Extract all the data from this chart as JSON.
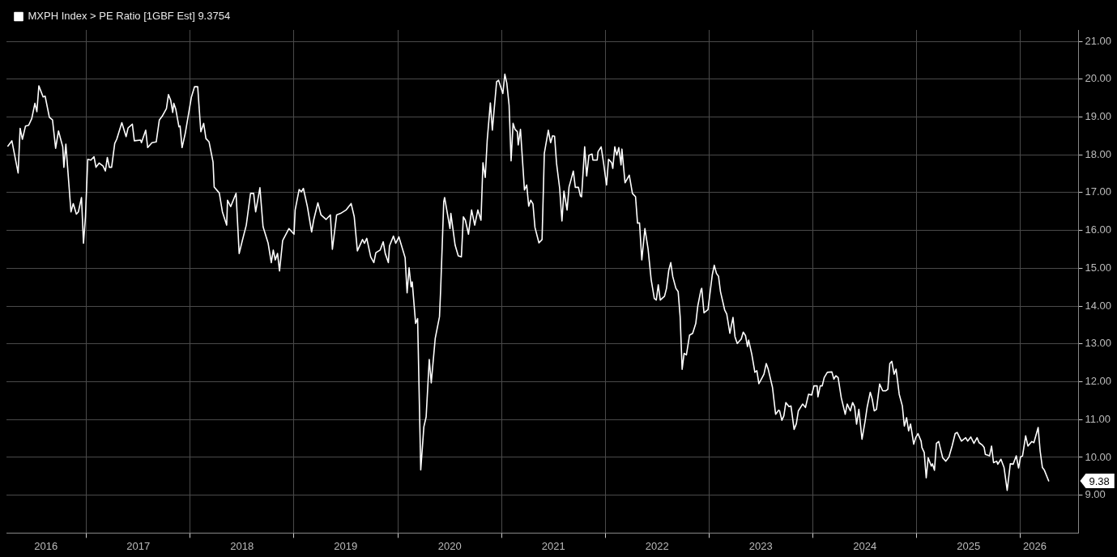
{
  "chart_data": {
    "type": "line",
    "x": [
      "2016-03-30",
      "2016-04-13",
      "2016-05-05",
      "2016-05-12",
      "2016-05-20",
      "2016-05-31",
      "2016-06-11",
      "2016-06-22",
      "2016-07-03",
      "2016-07-10",
      "2016-07-17",
      "2016-08-01",
      "2016-08-08",
      "2016-08-23",
      "2016-09-03",
      "2016-09-14",
      "2016-09-24",
      "2016-10-09",
      "2016-10-13",
      "2016-10-20",
      "2016-11-07",
      "2016-11-15",
      "2016-11-26",
      "2016-12-03",
      "2016-12-14",
      "2016-12-21",
      "2016-12-28",
      "2017-01-05",
      "2017-01-16",
      "2017-01-27",
      "2017-02-03",
      "2017-02-14",
      "2017-02-28",
      "2017-03-08",
      "2017-03-15",
      "2017-03-22",
      "2017-03-30",
      "2017-04-10",
      "2017-04-17",
      "2017-05-05",
      "2017-05-20",
      "2017-05-27",
      "2017-06-11",
      "2017-06-18",
      "2017-07-10",
      "2017-07-13",
      "2017-07-28",
      "2017-08-04",
      "2017-08-19",
      "2017-09-03",
      "2017-09-14",
      "2017-09-24",
      "2017-10-09",
      "2017-10-16",
      "2017-10-24",
      "2017-10-31",
      "2017-11-04",
      "2017-11-11",
      "2017-11-22",
      "2017-11-26",
      "2017-12-03",
      "2017-12-14",
      "2018-01-05",
      "2018-01-16",
      "2018-01-27",
      "2018-02-07",
      "2018-02-17",
      "2018-02-25",
      "2018-03-08",
      "2018-03-22",
      "2018-03-26",
      "2018-04-13",
      "2018-04-24",
      "2018-05-09",
      "2018-05-12",
      "2018-05-23",
      "2018-06-11",
      "2018-06-22",
      "2018-07-03",
      "2018-07-17",
      "2018-08-01",
      "2018-08-12",
      "2018-08-19",
      "2018-09-03",
      "2018-09-14",
      "2018-10-02",
      "2018-10-13",
      "2018-10-20",
      "2018-10-27",
      "2018-11-04",
      "2018-11-11",
      "2018-11-22",
      "2018-12-14",
      "2019-01-01",
      "2019-01-05",
      "2019-01-19",
      "2019-01-27",
      "2019-02-03",
      "2019-02-17",
      "2019-03-04",
      "2019-03-11",
      "2019-03-26",
      "2019-04-06",
      "2019-04-24",
      "2019-05-09",
      "2019-05-16",
      "2019-05-31",
      "2019-06-14",
      "2019-07-03",
      "2019-07-21",
      "2019-08-01",
      "2019-08-12",
      "2019-08-30",
      "2019-09-06",
      "2019-09-14",
      "2019-09-28",
      "2019-10-09",
      "2019-10-16",
      "2019-10-31",
      "2019-11-11",
      "2019-11-18",
      "2019-11-29",
      "2019-12-03",
      "2019-12-17",
      "2019-12-25",
      "2020-01-05",
      "2020-01-27",
      "2020-02-03",
      "2020-02-10",
      "2020-02-17",
      "2020-02-21",
      "2020-03-04",
      "2020-03-11",
      "2020-03-22",
      "2020-04-02",
      "2020-04-10",
      "2020-04-21",
      "2020-04-28",
      "2020-05-12",
      "2020-05-27",
      "2020-05-31",
      "2020-06-11",
      "2020-06-14",
      "2020-07-03",
      "2020-07-06",
      "2020-07-21",
      "2020-08-01",
      "2020-08-12",
      "2020-08-19",
      "2020-08-26",
      "2020-09-06",
      "2020-09-17",
      "2020-09-28",
      "2020-10-09",
      "2020-10-20",
      "2020-10-27",
      "2020-11-04",
      "2020-11-11",
      "2020-11-22",
      "2020-11-29",
      "2020-12-14",
      "2020-12-21",
      "2021-01-05",
      "2021-01-12",
      "2021-01-19",
      "2021-01-27",
      "2021-02-03",
      "2021-02-10",
      "2021-02-17",
      "2021-02-25",
      "2021-02-28",
      "2021-03-08",
      "2021-03-22",
      "2021-03-30",
      "2021-04-06",
      "2021-04-13",
      "2021-04-21",
      "2021-04-28",
      "2021-05-12",
      "2021-05-23",
      "2021-05-31",
      "2021-06-14",
      "2021-06-22",
      "2021-06-29",
      "2021-07-06",
      "2021-07-13",
      "2021-07-24",
      "2021-08-01",
      "2021-08-08",
      "2021-08-19",
      "2021-08-26",
      "2021-09-03",
      "2021-09-10",
      "2021-09-17",
      "2021-09-28",
      "2021-10-05",
      "2021-10-09",
      "2021-10-20",
      "2021-10-27",
      "2021-11-04",
      "2021-11-15",
      "2021-11-18",
      "2021-12-03",
      "2021-12-06",
      "2021-12-17",
      "2021-12-25",
      "2022-01-05",
      "2022-01-12",
      "2022-01-23",
      "2022-01-27",
      "2022-02-03",
      "2022-02-10",
      "2022-02-17",
      "2022-02-25",
      "2022-02-28",
      "2022-03-11",
      "2022-03-26",
      "2022-04-06",
      "2022-04-17",
      "2022-04-24",
      "2022-05-01",
      "2022-05-09",
      "2022-05-20",
      "2022-05-31",
      "2022-06-11",
      "2022-06-22",
      "2022-06-29",
      "2022-07-06",
      "2022-07-13",
      "2022-07-28",
      "2022-08-04",
      "2022-08-12",
      "2022-08-19",
      "2022-08-26",
      "2022-09-06",
      "2022-09-14",
      "2022-09-21",
      "2022-09-28",
      "2022-10-05",
      "2022-10-13",
      "2022-10-24",
      "2022-11-04",
      "2022-11-15",
      "2022-11-22",
      "2022-12-03",
      "2022-12-06",
      "2022-12-14",
      "2022-12-28",
      "2023-01-12",
      "2023-01-19",
      "2023-01-27",
      "2023-02-03",
      "2023-02-10",
      "2023-02-25",
      "2023-03-04",
      "2023-03-15",
      "2023-03-26",
      "2023-04-02",
      "2023-04-10",
      "2023-04-24",
      "2023-05-01",
      "2023-05-09",
      "2023-05-16",
      "2023-05-20",
      "2023-05-31",
      "2023-06-11",
      "2023-06-18",
      "2023-06-25",
      "2023-07-06",
      "2023-07-13",
      "2023-07-21",
      "2023-07-28",
      "2023-08-12",
      "2023-08-23",
      "2023-09-03",
      "2023-09-06",
      "2023-09-14",
      "2023-09-21",
      "2023-09-28",
      "2023-10-09",
      "2023-10-16",
      "2023-10-27",
      "2023-11-04",
      "2023-11-11",
      "2023-11-26",
      "2023-12-06",
      "2023-12-17",
      "2023-12-28",
      "2024-01-05",
      "2024-01-16",
      "2024-01-19",
      "2024-01-27",
      "2024-02-03",
      "2024-02-10",
      "2024-02-21",
      "2024-03-08",
      "2024-03-15",
      "2024-03-22",
      "2024-03-30",
      "2024-04-10",
      "2024-04-24",
      "2024-05-01",
      "2024-05-12",
      "2024-05-20",
      "2024-05-27",
      "2024-06-03",
      "2024-06-11",
      "2024-06-22",
      "2024-07-03",
      "2024-07-10",
      "2024-07-21",
      "2024-07-28",
      "2024-08-04",
      "2024-08-12",
      "2024-08-23",
      "2024-09-03",
      "2024-09-14",
      "2024-09-21",
      "2024-09-28",
      "2024-10-05",
      "2024-10-13",
      "2024-10-20",
      "2024-10-31",
      "2024-11-11",
      "2024-11-18",
      "2024-11-26",
      "2024-12-03",
      "2024-12-10",
      "2024-12-21",
      "2024-12-28",
      "2025-01-05",
      "2025-01-16",
      "2025-01-19",
      "2025-01-27",
      "2025-02-03",
      "2025-02-10",
      "2025-02-21",
      "2025-02-25",
      "2025-03-04",
      "2025-03-11",
      "2025-03-19",
      "2025-04-02",
      "2025-04-13",
      "2025-04-24",
      "2025-05-05",
      "2025-05-16",
      "2025-05-23",
      "2025-06-07",
      "2025-06-22",
      "2025-06-29",
      "2025-07-10",
      "2025-07-21",
      "2025-08-01",
      "2025-08-08",
      "2025-08-19",
      "2025-08-26",
      "2025-08-30",
      "2025-09-14",
      "2025-09-21",
      "2025-09-28",
      "2025-10-09",
      "2025-10-13",
      "2025-10-24",
      "2025-11-04",
      "2025-11-15",
      "2025-11-26",
      "2025-12-06",
      "2025-12-17",
      "2025-12-25",
      "2026-01-01",
      "2026-01-08",
      "2026-01-19",
      "2026-01-27",
      "2026-02-10",
      "2026-02-17",
      "2026-03-04",
      "2026-03-11",
      "2026-03-19",
      "2026-03-26",
      "2026-04-10"
    ],
    "series": [
      {
        "name": "MXPH Index > PE Ratio [1GBF Est] 9.3754",
        "color": "#ffffff",
        "values": [
          18.23,
          18.37,
          17.52,
          18.7,
          18.41,
          18.76,
          18.78,
          18.96,
          19.36,
          19.14,
          19.82,
          19.53,
          19.55,
          18.99,
          18.92,
          18.17,
          18.63,
          18.21,
          17.67,
          18.28,
          16.49,
          16.71,
          16.43,
          16.49,
          16.87,
          15.66,
          16.36,
          17.88,
          17.86,
          17.95,
          17.67,
          17.78,
          17.7,
          17.57,
          17.93,
          17.67,
          17.67,
          18.3,
          18.41,
          18.85,
          18.48,
          18.71,
          18.81,
          18.37,
          18.39,
          18.32,
          18.65,
          18.19,
          18.32,
          18.34,
          18.92,
          19.02,
          19.22,
          19.59,
          19.44,
          19.12,
          19.36,
          19.2,
          18.74,
          18.76,
          18.19,
          18.56,
          19.53,
          19.8,
          19.8,
          18.61,
          18.83,
          18.43,
          18.34,
          17.81,
          17.15,
          16.99,
          16.49,
          16.14,
          16.8,
          16.63,
          16.98,
          15.39,
          15.73,
          16.14,
          16.98,
          16.98,
          16.49,
          17.13,
          16.1,
          15.66,
          15.15,
          15.48,
          15.22,
          15.39,
          14.93,
          15.73,
          16.05,
          15.9,
          16.54,
          17.08,
          17.02,
          17.11,
          16.63,
          15.96,
          16.27,
          16.73,
          16.41,
          16.29,
          16.41,
          15.5,
          16.41,
          16.45,
          16.54,
          16.71,
          16.36,
          15.46,
          15.76,
          15.66,
          15.79,
          15.3,
          15.15,
          15.41,
          15.48,
          15.7,
          15.39,
          15.15,
          15.59,
          15.85,
          15.66,
          15.83,
          15.28,
          14.35,
          15.01,
          14.51,
          14.64,
          13.54,
          13.67,
          9.67,
          10.81,
          11.07,
          12.59,
          11.97,
          13.15,
          13.72,
          14.42,
          16.76,
          16.87,
          16.05,
          16.45,
          15.61,
          15.33,
          15.3,
          16.36,
          16.27,
          15.9,
          16.54,
          16.14,
          16.54,
          16.27,
          17.79,
          17.4,
          18.39,
          19.37,
          18.65,
          19.93,
          19.97,
          19.62,
          20.13,
          19.89,
          19.31,
          17.84,
          18.83,
          18.67,
          18.61,
          18.26,
          18.67,
          17.07,
          17.2,
          16.64,
          16.8,
          16.7,
          16.08,
          15.67,
          15.76,
          18.04,
          18.65,
          18.32,
          18.5,
          18.49,
          17.77,
          17.11,
          16.25,
          17.04,
          16.54,
          17.15,
          17.37,
          17.57,
          17.14,
          17.14,
          16.91,
          16.89,
          18.21,
          17.44,
          17.99,
          18.02,
          17.86,
          17.86,
          18.08,
          18.21,
          17.81,
          17.2,
          17.88,
          17.79,
          17.64,
          18.21,
          17.99,
          18.19,
          17.73,
          18.15,
          17.26,
          17.46,
          16.98,
          16.89,
          16.19,
          16.2,
          15.22,
          16.05,
          15.52,
          14.7,
          14.2,
          14.16,
          14.56,
          14.16,
          14.26,
          14.47,
          14.95,
          15.15,
          14.78,
          14.47,
          14.38,
          13.72,
          12.33,
          12.75,
          12.71,
          13.23,
          13.28,
          13.54,
          14.0,
          14.42,
          14.47,
          13.82,
          13.91,
          14.82,
          15.08,
          14.86,
          14.79,
          14.38,
          13.89,
          13.79,
          13.28,
          13.7,
          13.19,
          13.01,
          13.13,
          13.31,
          13.22,
          12.93,
          13.1,
          12.73,
          12.25,
          12.29,
          11.95,
          12.1,
          12.2,
          12.48,
          12.33,
          11.85,
          11.14,
          11.25,
          11.23,
          10.98,
          11.1,
          11.45,
          11.34,
          11.36,
          10.74,
          10.89,
          11.23,
          11.41,
          11.32,
          11.67,
          11.65,
          11.89,
          11.89,
          11.6,
          11.89,
          11.89,
          12.11,
          12.25,
          12.26,
          12.07,
          12.16,
          12.11,
          11.58,
          11.14,
          11.41,
          11.23,
          11.45,
          11.34,
          10.88,
          11.27,
          10.48,
          10.96,
          11.32,
          11.72,
          11.54,
          11.23,
          11.27,
          11.94,
          11.76,
          11.76,
          11.8,
          12.48,
          12.54,
          12.2,
          12.33,
          11.67,
          11.36,
          10.83,
          11.05,
          10.7,
          10.88,
          10.35,
          10.52,
          10.63,
          10.43,
          10.26,
          10.13,
          9.46,
          9.99,
          9.77,
          9.83,
          9.66,
          10.37,
          10.42,
          9.99,
          9.9,
          10.01,
          10.3,
          10.63,
          10.66,
          10.43,
          10.52,
          10.43,
          10.54,
          10.37,
          10.52,
          10.39,
          10.33,
          10.26,
          10.08,
          10.04,
          10.3,
          9.86,
          9.9,
          9.82,
          9.95,
          9.73,
          9.13,
          9.83,
          9.82,
          10.04,
          9.72,
          10.01,
          10.04,
          10.57,
          10.3,
          10.42,
          10.39,
          10.79,
          10.17,
          9.73,
          9.66,
          9.38
        ]
      }
    ],
    "xlim": [
      "2016-03-25",
      "2026-07-24"
    ],
    "xticks": [
      {
        "value": "2016-08-11",
        "label": "2016"
      },
      {
        "value": "2017-01-01",
        "label": null
      },
      {
        "value": "2017-07-02",
        "label": "2017"
      },
      {
        "value": "2018-01-01",
        "label": null
      },
      {
        "value": "2018-07-02",
        "label": "2018"
      },
      {
        "value": "2019-01-01",
        "label": null
      },
      {
        "value": "2019-07-02",
        "label": "2019"
      },
      {
        "value": "2020-01-01",
        "label": null
      },
      {
        "value": "2020-07-02",
        "label": "2020"
      },
      {
        "value": "2021-01-01",
        "label": null
      },
      {
        "value": "2021-07-02",
        "label": "2021"
      },
      {
        "value": "2022-01-01",
        "label": null
      },
      {
        "value": "2022-07-02",
        "label": "2022"
      },
      {
        "value": "2023-01-01",
        "label": null
      },
      {
        "value": "2023-07-02",
        "label": "2023"
      },
      {
        "value": "2024-01-01",
        "label": null
      },
      {
        "value": "2024-07-02",
        "label": "2024"
      },
      {
        "value": "2025-01-01",
        "label": null
      },
      {
        "value": "2025-07-02",
        "label": "2025"
      },
      {
        "value": "2026-01-01",
        "label": null
      },
      {
        "value": "2026-02-20",
        "label": "2026"
      }
    ],
    "ylim": [
      8,
      21.3
    ],
    "yticks": [
      {
        "value": 9,
        "label": "9.00"
      },
      {
        "value": 10,
        "label": "10.00"
      },
      {
        "value": 11,
        "label": "11.00"
      },
      {
        "value": 12,
        "label": "12.00"
      },
      {
        "value": 13,
        "label": "13.00"
      },
      {
        "value": 14,
        "label": "14.00"
      },
      {
        "value": 15,
        "label": "15.00"
      },
      {
        "value": 16,
        "label": "16.00"
      },
      {
        "value": 17,
        "label": "17.00"
      },
      {
        "value": 18,
        "label": "18.00"
      },
      {
        "value": 19,
        "label": "19.00"
      },
      {
        "value": 20,
        "label": "20.00"
      },
      {
        "value": 21,
        "label": "21.00"
      }
    ],
    "annotations": [
      "9.38"
    ],
    "grid": true,
    "legend": "top left",
    "marker": "none",
    "line_style": "solid"
  }
}
